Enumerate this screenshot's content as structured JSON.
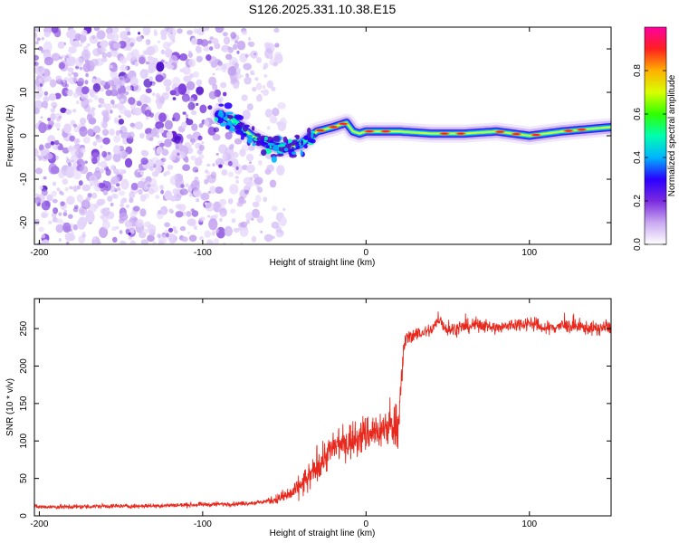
{
  "title": "S126.2025.331.10.38.E15",
  "chart_data": [
    {
      "type": "heatmap",
      "xlabel": "Height of straight line (km)",
      "ylabel": "Frequency (Hz)",
      "xlim": [
        -203,
        150
      ],
      "ylim": [
        -25,
        25
      ],
      "xticks": [
        -200,
        -100,
        0,
        100
      ],
      "yticks": [
        -20,
        -10,
        0,
        10,
        20
      ],
      "colorbar": {
        "label": "Normalized spectral amplitude",
        "range": [
          0,
          1
        ],
        "ticks": [
          0.0,
          0.2,
          0.4,
          0.6,
          0.8
        ],
        "colors": [
          "#ffffff",
          "#c9a8f0",
          "#7b2be0",
          "#2a00ff",
          "#00b4ff",
          "#00ffb0",
          "#30ff00",
          "#d8ff00",
          "#ffb000",
          "#ff2020",
          "#ff00a0"
        ]
      },
      "ridge": {
        "description": "dominant frequency track",
        "x": [
          -90,
          -80,
          -70,
          -60,
          -50,
          -40,
          -30,
          -20,
          -12,
          -8,
          -4,
          0,
          10,
          20,
          40,
          60,
          80,
          100,
          120,
          150
        ],
        "y": [
          5,
          3,
          0,
          -2,
          -3,
          -2,
          1,
          2,
          3,
          1,
          0.5,
          1,
          1,
          1,
          0.5,
          0.5,
          1,
          0,
          1,
          2
        ]
      },
      "noise_region_x": [
        -203,
        -60
      ]
    },
    {
      "type": "line",
      "xlabel": "Height of straight line (km)",
      "ylabel": "SNR (10 * v/v)",
      "xlim": [
        -203,
        150
      ],
      "ylim": [
        0,
        290
      ],
      "xticks": [
        -200,
        -100,
        0,
        100
      ],
      "yticks": [
        0,
        50,
        100,
        150,
        200,
        250
      ],
      "line_color": "#e8281c",
      "series": [
        {
          "name": "SNR",
          "x": [
            -203,
            -180,
            -160,
            -140,
            -120,
            -100,
            -80,
            -65,
            -55,
            -45,
            -40,
            -35,
            -30,
            -25,
            -20,
            -15,
            -10,
            -5,
            0,
            5,
            10,
            15,
            20,
            22,
            23,
            25,
            30,
            40,
            45,
            50,
            60,
            70,
            80,
            90,
            100,
            110,
            120,
            130,
            140,
            150
          ],
          "y": [
            12,
            12,
            13,
            13,
            14,
            15,
            16,
            18,
            22,
            30,
            40,
            50,
            65,
            80,
            90,
            95,
            100,
            105,
            110,
            112,
            115,
            120,
            125,
            180,
            225,
            238,
            242,
            248,
            262,
            248,
            252,
            256,
            250,
            255,
            258,
            250,
            254,
            252,
            250,
            252
          ]
        }
      ]
    }
  ]
}
